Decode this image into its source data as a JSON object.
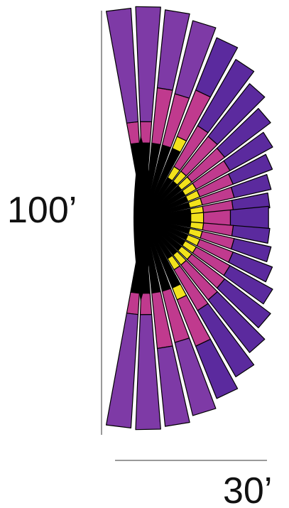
{
  "labels": {
    "height": "100’",
    "width": "30’"
  },
  "colors": {
    "background": "#ffffff",
    "scale_line": "#9a9a9a",
    "outline": "#000000",
    "hub": "#000000",
    "outer_band": "#5b2a9e",
    "outer_band_edge": "#7e3aa6",
    "mid_band": "#c03a8e",
    "inner_band": "#f2e21c",
    "text": "#111111"
  },
  "fan": {
    "ray_count": 25,
    "bands": [
      "inner",
      "mid",
      "outer"
    ]
  }
}
